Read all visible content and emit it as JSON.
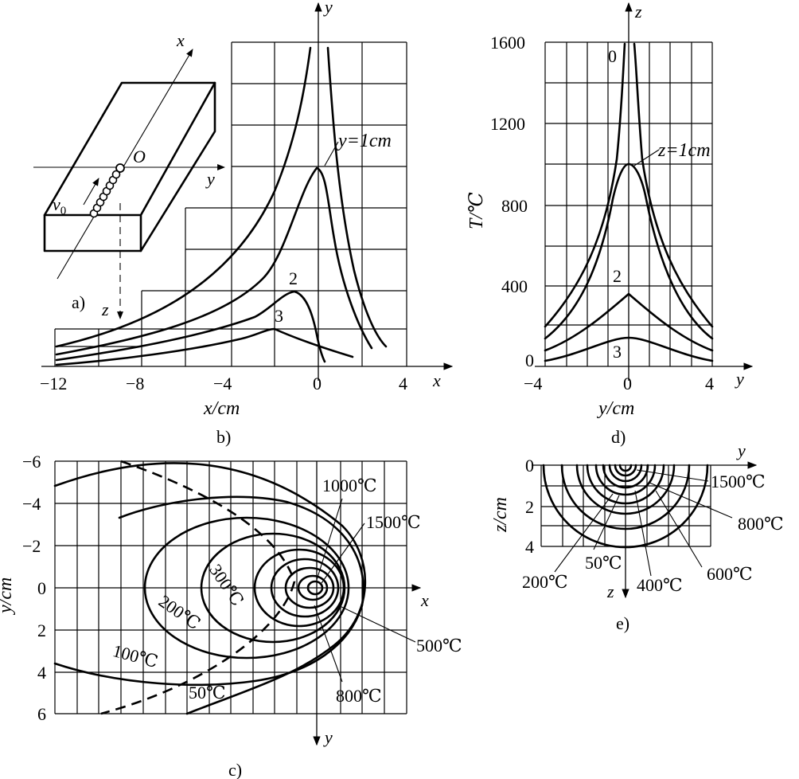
{
  "panel_a": {
    "label": "a)",
    "x": "x",
    "y": "y",
    "z": "z",
    "origin": "O",
    "velocity": "v",
    "velocity_sub": "0"
  },
  "panel_b": {
    "label": "b)",
    "x_axis": "x",
    "y_axis": "y",
    "xlabel": "x/cm",
    "xticks": [
      "−12",
      "−8",
      "−4",
      "0",
      "4"
    ],
    "curve_labels": [
      "y=1cm",
      "2",
      "3"
    ]
  },
  "panel_c": {
    "label": "c)",
    "x_axis": "x",
    "y_axis": "y",
    "ylabel": "y/cm",
    "yticks": [
      "−6",
      "−4",
      "−2",
      "0",
      "2",
      "4",
      "6"
    ],
    "isotherms": [
      "1000℃",
      "1500℃",
      "300℃",
      "200℃",
      "100℃",
      "50℃",
      "800℃",
      "500℃"
    ]
  },
  "panel_d": {
    "label": "d)",
    "z_axis": "z",
    "y_axis": "y",
    "ylabel": "T/℃",
    "xlabel": "y/cm",
    "yticks": [
      "1600",
      "1200",
      "800",
      "400",
      "0"
    ],
    "xticks": [
      "−4",
      "0",
      "4"
    ],
    "curve_labels": [
      "0",
      "z=1cm",
      "2",
      "3"
    ]
  },
  "panel_e": {
    "label": "e)",
    "y_axis": "y",
    "z_axis": "z",
    "ylabel": "z/cm",
    "yticks": [
      "0",
      "2",
      "4"
    ],
    "isotherms": [
      "1500℃",
      "800℃",
      "600℃",
      "200℃",
      "50℃",
      "400℃"
    ]
  }
}
